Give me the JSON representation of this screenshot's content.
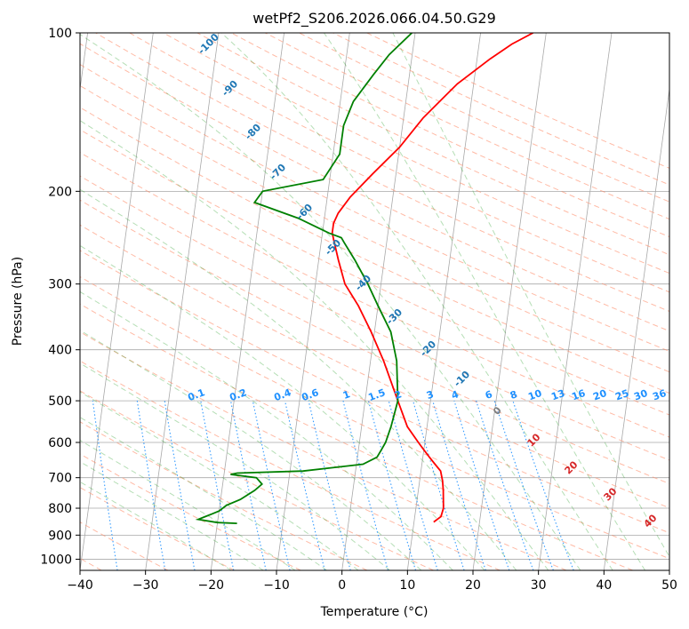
{
  "chart_data": {
    "type": "line",
    "title": "wetPf2_S206.2026.066.04.50.G29",
    "xlabel": "Temperature (°C)",
    "ylabel": "Pressure (hPa)",
    "xlim": [
      -40,
      50
    ],
    "ylim": [
      1050,
      100
    ],
    "y_scale": "log",
    "skew": "skew-T",
    "grid": true,
    "x_ticks": [
      -40,
      -30,
      -20,
      -10,
      0,
      10,
      20,
      30,
      40,
      50
    ],
    "y_ticks": [
      100,
      200,
      300,
      400,
      500,
      600,
      700,
      800,
      900,
      1000
    ],
    "series": [
      {
        "color": "#ff0000",
        "x": [
          13,
          14,
          14.2,
          14,
          13.8,
          13.5,
          13,
          12,
          11,
          10,
          9,
          7,
          5,
          2,
          -0.5,
          -3,
          -5.5,
          -7,
          -8,
          -8.5,
          -8.5,
          -8,
          -6.5,
          -3.5,
          0,
          3,
          7.5,
          12,
          15,
          18
        ],
        "y": [
          850,
          830,
          800,
          770,
          740,
          710,
          680,
          660,
          640,
          620,
          600,
          560,
          500,
          420,
          370,
          330,
          300,
          270,
          250,
          240,
          230,
          220,
          205,
          185,
          165,
          145,
          125,
          112,
          105,
          100
        ]
      },
      {
        "color": "#008000",
        "x": [
          -17,
          -20,
          -23,
          -22,
          -21,
          -20,
          -19,
          -17,
          -15,
          -14,
          -15,
          -19,
          -18,
          -8,
          1,
          3,
          3.5,
          4,
          4.5,
          5,
          4,
          2.5,
          0,
          -2,
          -4.5,
          -6.5,
          -7,
          -9,
          -14,
          -21,
          -20,
          -11,
          -9,
          -9,
          -8,
          -5.5,
          -3.5,
          -0.5
        ],
        "y": [
          855,
          852,
          840,
          830,
          820,
          810,
          790,
          770,
          740,
          720,
          700,
          690,
          686,
          680,
          660,
          640,
          620,
          600,
          560,
          500,
          420,
          370,
          330,
          300,
          270,
          250,
          245,
          240,
          225,
          210,
          200,
          190,
          170,
          150,
          135,
          120,
          110,
          100
        ]
      }
    ],
    "ref_lines": {
      "dry_adiabats_theta_c": [
        -100,
        -90,
        -80,
        -70,
        -60,
        -50,
        -40,
        -30,
        -20,
        -10
      ],
      "moist_adiabats_c": [
        0,
        10,
        20,
        30,
        40
      ],
      "mixing_ratios_gkg": [
        0.1,
        0.2,
        0.4,
        0.6,
        1,
        1.5,
        2,
        3,
        4,
        6,
        8,
        10,
        13,
        16,
        20,
        25,
        30,
        36
      ]
    },
    "annotations": {
      "dry": [
        "-100",
        "-90",
        "-80",
        "-70",
        "-60",
        "-50",
        "-40",
        "-30",
        "-20",
        "-10"
      ],
      "moist": [
        "0",
        "10",
        "20",
        "30",
        "40"
      ],
      "mixing": [
        "0.1",
        "0.2",
        "0.4",
        "0.6",
        "1",
        "1.5",
        "2",
        "3",
        "4",
        "6",
        "8",
        "10",
        "13",
        "16",
        "20",
        "25",
        "30",
        "36"
      ]
    },
    "colors": {
      "temperature": "#ff0000",
      "dewpoint": "#008000",
      "dry_adiabat": "#ff8c69",
      "moist_adiabat": "#2ca02c",
      "mixing_ratio": "#1e90ff",
      "dry_label": "#1f77b4",
      "moist_label": "#d62728",
      "grid": "#a9a9a9"
    }
  }
}
